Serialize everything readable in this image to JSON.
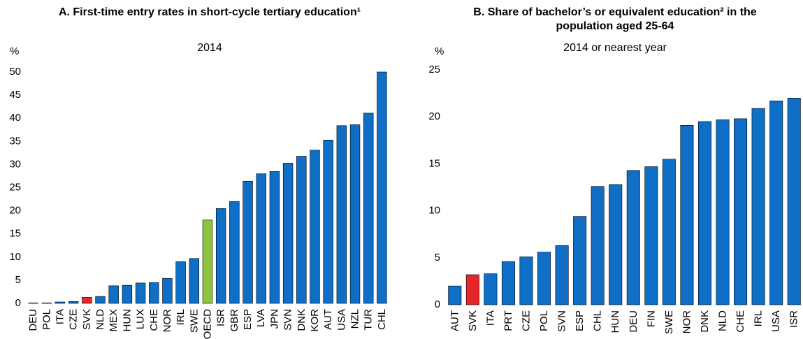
{
  "chart_data": [
    {
      "type": "bar",
      "title": "A. First-time entry rates in short-cycle tertiary education¹",
      "subtitle": "2014",
      "y_label": "%",
      "categories": [
        "DEU",
        "POL",
        "ITA",
        "CZE",
        "SVK",
        "NLD",
        "MEX",
        "HUN",
        "LUX",
        "CHE",
        "NOR",
        "IRL",
        "SWE",
        "OECD",
        "ISR",
        "GBR",
        "ESP",
        "LVA",
        "JPN",
        "SVN",
        "DNK",
        "KOR",
        "AUT",
        "USA",
        "NZL",
        "TUR",
        "CHL"
      ],
      "values": [
        0.1,
        0.1,
        0.3,
        0.4,
        1.3,
        1.5,
        3.8,
        3.9,
        4.4,
        4.5,
        5.4,
        9.0,
        9.7,
        18.0,
        20.5,
        22.0,
        26.4,
        28.0,
        28.5,
        30.3,
        31.8,
        33.1,
        35.3,
        38.4,
        38.6,
        41.1,
        50.0
      ],
      "colors": [
        "#0f6fc6",
        "#0f6fc6",
        "#0f6fc6",
        "#0f6fc6",
        "#e3262a",
        "#0f6fc6",
        "#0f6fc6",
        "#0f6fc6",
        "#0f6fc6",
        "#0f6fc6",
        "#0f6fc6",
        "#0f6fc6",
        "#0f6fc6",
        "#8cc63f",
        "#0f6fc6",
        "#0f6fc6",
        "#0f6fc6",
        "#0f6fc6",
        "#0f6fc6",
        "#0f6fc6",
        "#0f6fc6",
        "#0f6fc6",
        "#0f6fc6",
        "#0f6fc6",
        "#0f6fc6",
        "#0f6fc6",
        "#0f6fc6"
      ],
      "ylim": [
        0,
        50
      ],
      "yticks": [
        0,
        5,
        10,
        15,
        20,
        25,
        30,
        35,
        40,
        45,
        50
      ],
      "grid": false
    },
    {
      "type": "bar",
      "title": "B. Share of bachelor’s or equivalent education² in the population aged 25-64",
      "subtitle": "2014 or nearest year",
      "y_label": "%",
      "categories": [
        "AUT",
        "SVK",
        "ITA",
        "PRT",
        "CZE",
        "POL",
        "SVN",
        "ESP",
        "CHL",
        "HUN",
        "DEU",
        "FIN",
        "SWE",
        "NOR",
        "DNK",
        "NLD",
        "CHE",
        "IRL",
        "USA",
        "ISR"
      ],
      "values": [
        2.0,
        3.2,
        3.3,
        4.6,
        5.1,
        5.6,
        6.3,
        9.4,
        12.6,
        12.8,
        14.3,
        14.7,
        15.5,
        19.1,
        19.5,
        19.7,
        19.8,
        20.9,
        21.7,
        22.0
      ],
      "colors": [
        "#0f6fc6",
        "#e3262a",
        "#0f6fc6",
        "#0f6fc6",
        "#0f6fc6",
        "#0f6fc6",
        "#0f6fc6",
        "#0f6fc6",
        "#0f6fc6",
        "#0f6fc6",
        "#0f6fc6",
        "#0f6fc6",
        "#0f6fc6",
        "#0f6fc6",
        "#0f6fc6",
        "#0f6fc6",
        "#0f6fc6",
        "#0f6fc6",
        "#0f6fc6",
        "#0f6fc6"
      ],
      "ylim": [
        0,
        25
      ],
      "yticks": [
        0,
        5,
        10,
        15,
        20,
        25
      ],
      "grid": false
    }
  ]
}
